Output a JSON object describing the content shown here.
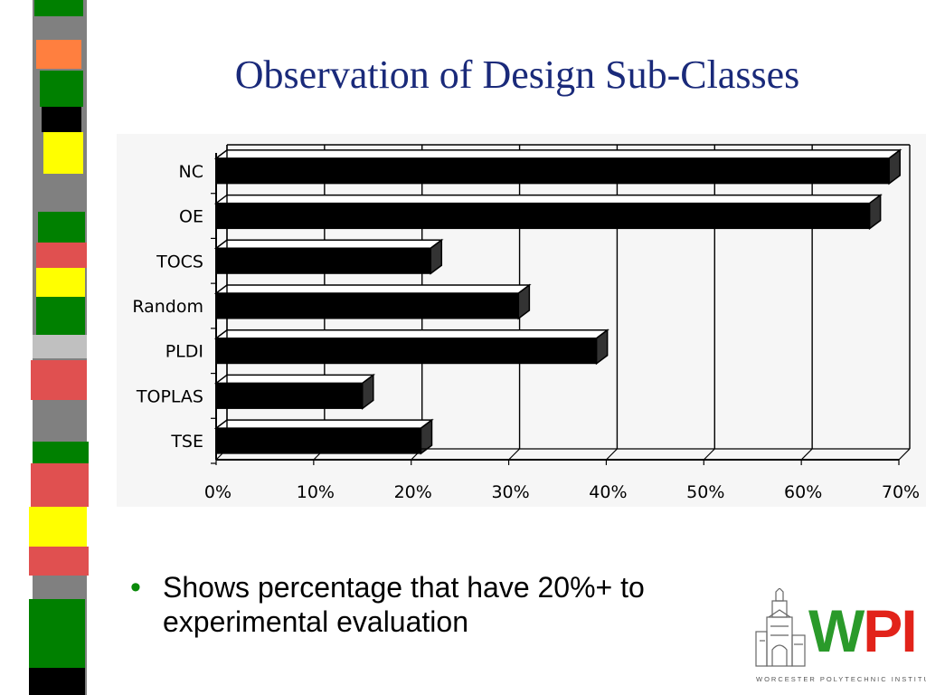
{
  "slide": {
    "title": "Observation of Design Sub-Classes",
    "bullets": [
      "Shows percentage that have 20%+ to experimental evaluation"
    ]
  },
  "logo": {
    "wordmark_w": "W",
    "wordmark_pi": "PI",
    "subtitle": "WORCESTER POLYTECHNIC INSTITUTE",
    "colors": {
      "w": "#2a9a2a",
      "pi": "#e2231a"
    }
  },
  "stripe_colors": [
    "#808080",
    "#008000",
    "#ff7f3f",
    "#ffff00",
    "#000000",
    "#e05050",
    "#c0c0c0"
  ],
  "chart_data": {
    "type": "bar",
    "orientation": "horizontal",
    "categories": [
      "NC",
      "OE",
      "TOCS",
      "Random",
      "PLDI",
      "TOPLAS",
      "TSE"
    ],
    "values": [
      69,
      67,
      22,
      31,
      39,
      15,
      21
    ],
    "xlim": [
      0,
      70
    ],
    "x_ticks": [
      0,
      10,
      20,
      30,
      40,
      50,
      60,
      70
    ],
    "x_tick_labels": [
      "0%",
      "10%",
      "20%",
      "30%",
      "40%",
      "50%",
      "60%",
      "70%"
    ],
    "grid": true,
    "bar_color": "#000000"
  }
}
